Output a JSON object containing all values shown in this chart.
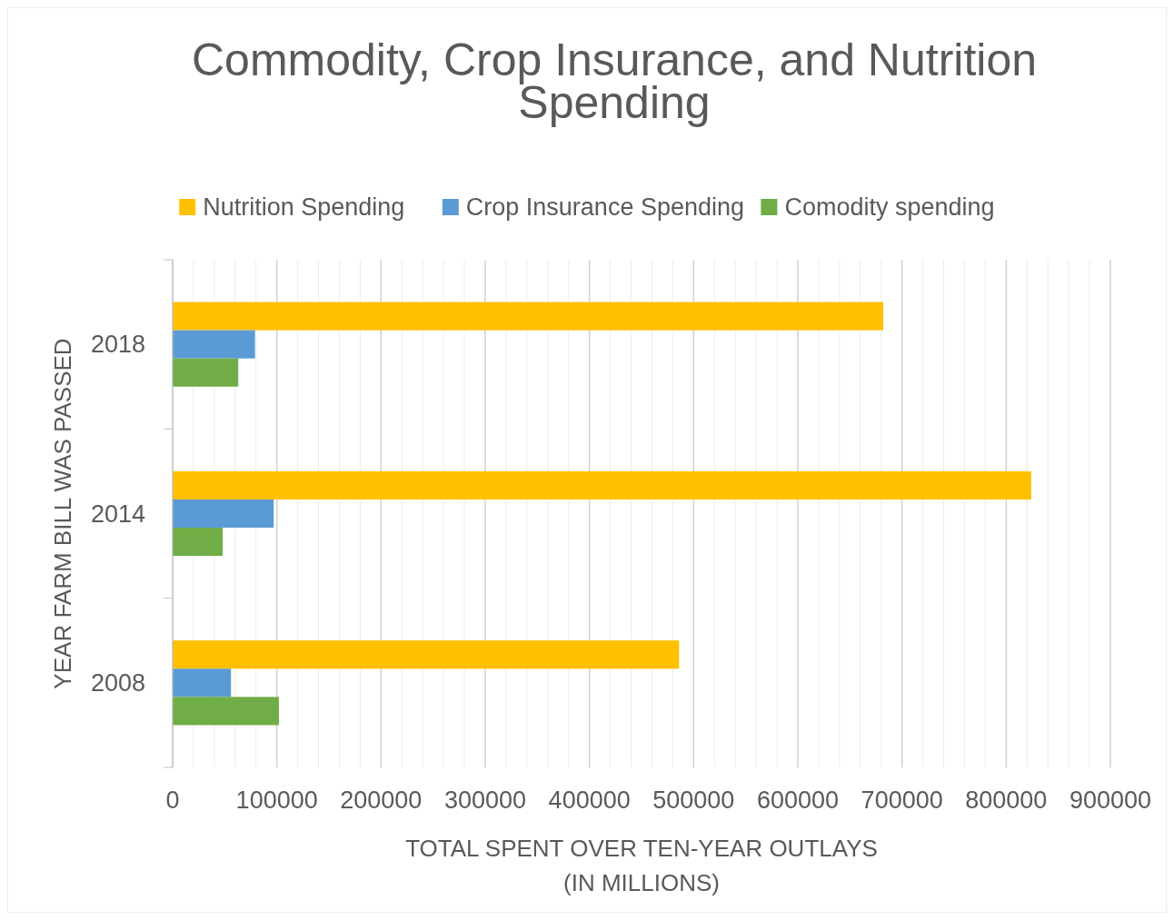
{
  "chart_data": {
    "type": "bar",
    "orientation": "horizontal",
    "title": "Commodity, Crop Insurance, and Nutrition Spending",
    "xlabel": "TOTAL SPENT OVER TEN-YEAR OUTLAYS\n(IN MILLIONS)",
    "ylabel": "YEAR FARM BILL WAS PASSED",
    "categories": [
      "2018",
      "2014",
      "2008"
    ],
    "series": [
      {
        "name": "Nutrition Spending",
        "color": "#ffc000",
        "values": [
          682000,
          824000,
          486000
        ]
      },
      {
        "name": "Crop Insurance Spending",
        "color": "#5b9bd5",
        "values": [
          79000,
          97000,
          56000
        ]
      },
      {
        "name": "Comodity spending",
        "color": "#70ad47",
        "values": [
          63000,
          48000,
          102000
        ]
      }
    ],
    "xlim": [
      0,
      900000
    ],
    "xticks": [
      0,
      {
        "value": 20000,
        "label": null
      },
      {
        "value": 40000,
        "label": null
      },
      {
        "value": 60000,
        "label": null
      },
      {
        "value": 80000,
        "label": null
      },
      100000,
      {
        "value": 120000,
        "label": null
      },
      {
        "value": 140000,
        "label": null
      },
      {
        "value": 160000,
        "label": null
      },
      {
        "value": 180000,
        "label": null
      },
      200000,
      {
        "value": 220000,
        "label": null
      },
      {
        "value": 240000,
        "label": null
      },
      {
        "value": 260000,
        "label": null
      },
      {
        "value": 280000,
        "label": null
      },
      300000,
      {
        "value": 320000,
        "label": null
      },
      {
        "value": 340000,
        "label": null
      },
      {
        "value": 360000,
        "label": null
      },
      {
        "value": 380000,
        "label": null
      },
      400000,
      {
        "value": 420000,
        "label": null
      },
      {
        "value": 440000,
        "label": null
      },
      {
        "value": 460000,
        "label": null
      },
      {
        "value": 480000,
        "label": null
      },
      500000,
      {
        "value": 520000,
        "label": null
      },
      {
        "value": 540000,
        "label": null
      },
      {
        "value": 560000,
        "label": null
      },
      {
        "value": 580000,
        "label": null
      },
      600000,
      {
        "value": 620000,
        "label": null
      },
      {
        "value": 640000,
        "label": null
      },
      {
        "value": 660000,
        "label": null
      },
      {
        "value": 680000,
        "label": null
      },
      700000,
      {
        "value": 720000,
        "label": null
      },
      {
        "value": 740000,
        "label": null
      },
      {
        "value": 760000,
        "label": null
      },
      {
        "value": 780000,
        "label": null
      },
      800000,
      {
        "value": 820000,
        "label": null
      },
      {
        "value": 840000,
        "label": null
      },
      {
        "value": 860000,
        "label": null
      },
      {
        "value": 880000,
        "label": null
      },
      900000
    ],
    "grid": "x",
    "legend": "top"
  }
}
